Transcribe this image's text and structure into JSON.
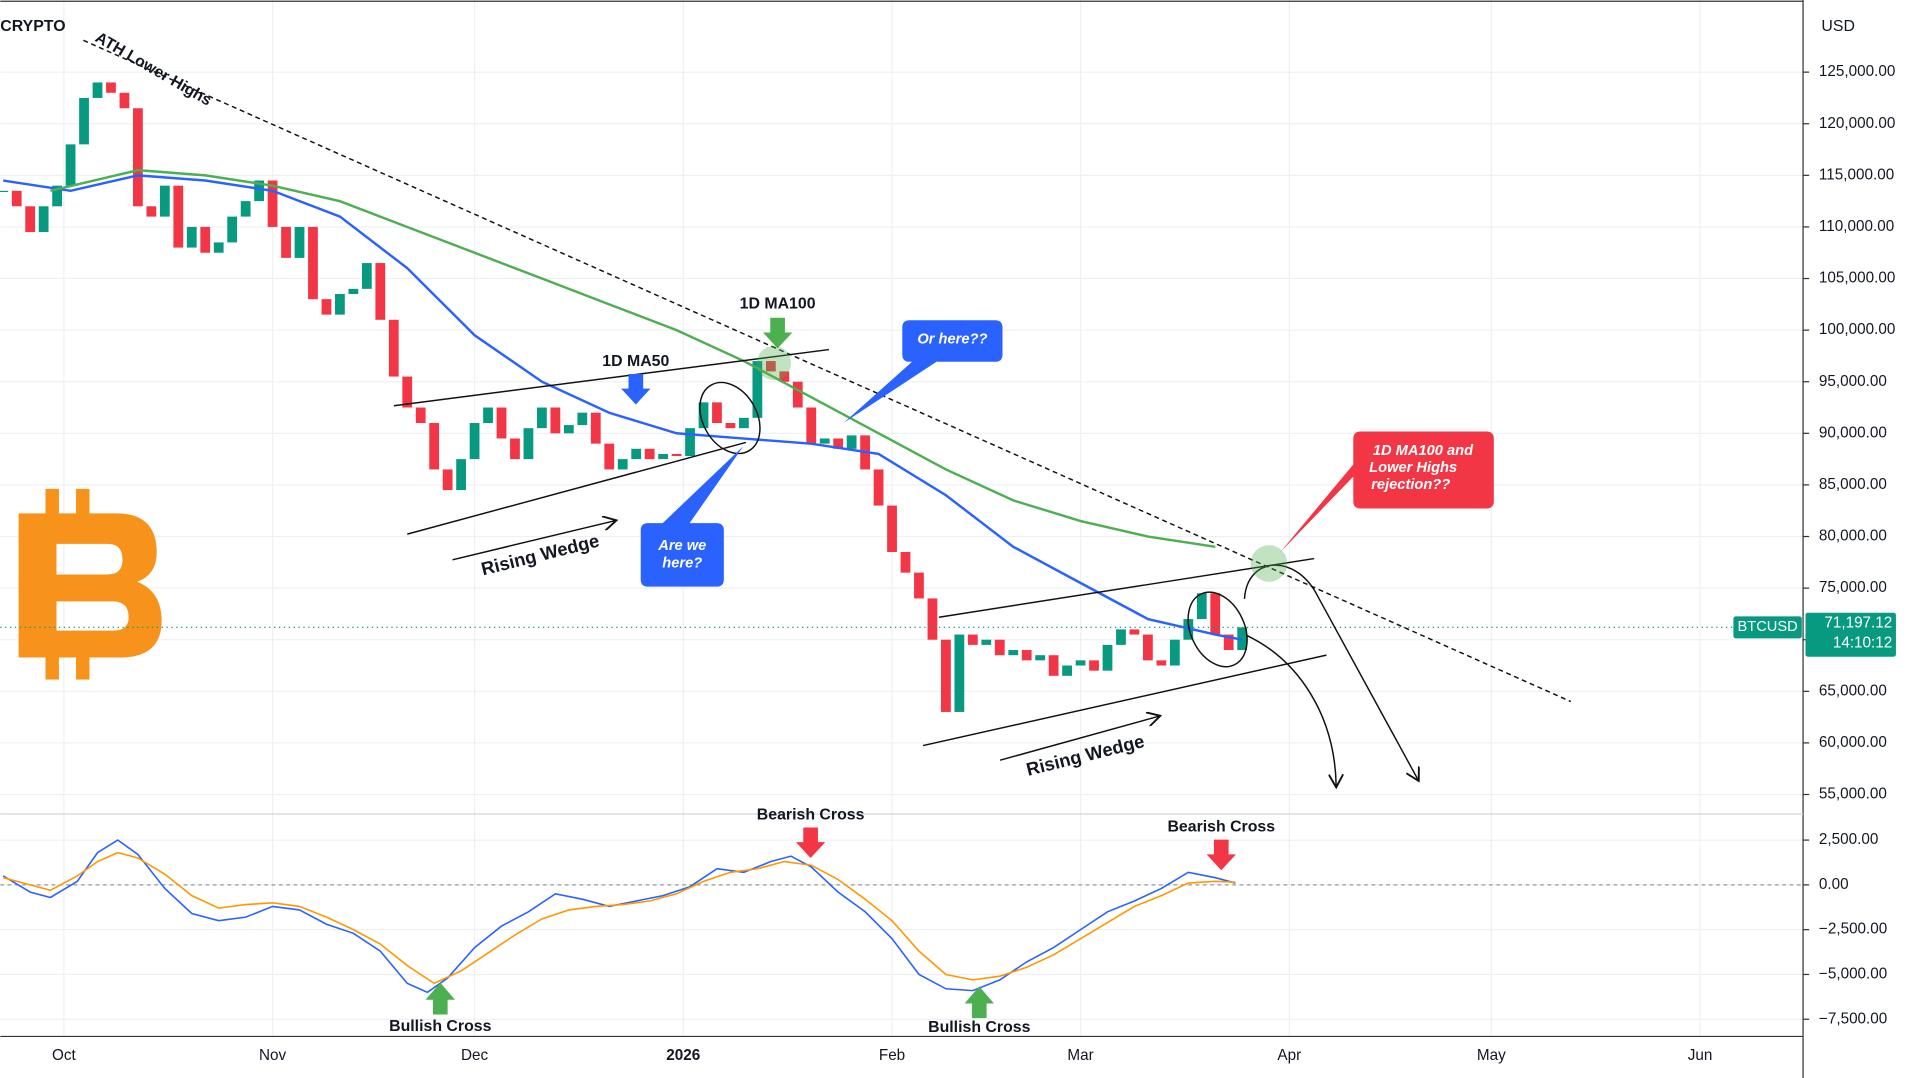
{
  "header": {
    "exchange": "CRYPTO",
    "currency": "USD"
  },
  "annotations": {
    "ath": "ATH Lower Highs",
    "ma100": "1D MA100",
    "ma50": "1D MA50",
    "or_here": "Or here??",
    "are_we_here": [
      "Are we",
      "here?"
    ],
    "rejection": [
      "1D MA100 and",
      "Lower Highs",
      "rejection??"
    ],
    "wedge1": "Rising Wedge",
    "wedge2": "Rising Wedge",
    "bearish1": "Bearish Cross",
    "bearish2": "Bearish Cross",
    "bullish1": "Bullish Cross",
    "bullish2": "Bullish Cross"
  },
  "chart_data": [
    {
      "type": "candlestick",
      "symbol": "BTCUSD",
      "last_price_label": "71,197.12",
      "countdown": "14:10:12",
      "up_color": "#089981",
      "down_color": "#f23645",
      "grid": true,
      "xlim": [
        -9.44,
        258.3
      ],
      "xticks": [
        {
          "value": 0,
          "label": "Oct"
        },
        {
          "value": 31,
          "label": "Nov"
        },
        {
          "value": 61,
          "label": "Dec"
        },
        {
          "value": 92,
          "label": "2026"
        },
        {
          "value": 123,
          "label": "Feb"
        },
        {
          "value": 151,
          "label": "Mar"
        },
        {
          "value": 182,
          "label": "Apr"
        },
        {
          "value": 212,
          "label": "May"
        },
        {
          "value": 243,
          "label": "Jun"
        }
      ],
      "ylim": [
        53230,
        131990
      ],
      "yticks": [
        {
          "value": 55000,
          "label": "55,000.00"
        },
        {
          "value": 60000,
          "label": "60,000.00"
        },
        {
          "value": 65000,
          "label": "65,000.00"
        },
        {
          "value": 70000,
          "label": "70,000.00"
        },
        {
          "value": 75000,
          "label": "75,000.00"
        },
        {
          "value": 80000,
          "label": "80,000.00"
        },
        {
          "value": 85000,
          "label": "85,000.00"
        },
        {
          "value": 90000,
          "label": "90,000.00"
        },
        {
          "value": 95000,
          "label": "95,000.00"
        },
        {
          "value": 100000,
          "label": "100,000.00"
        },
        {
          "value": 105000,
          "label": "105,000.00"
        },
        {
          "value": 110000,
          "label": "110,000.00"
        },
        {
          "value": 115000,
          "label": "115,000.00"
        },
        {
          "value": 120000,
          "label": "120,000.00"
        },
        {
          "value": 125000,
          "label": "125,000.00"
        }
      ],
      "x": [
        -9,
        -7,
        -5,
        -3,
        -1,
        1,
        3,
        5,
        7,
        9,
        11,
        13,
        15,
        17,
        19,
        21,
        23,
        25,
        27,
        29,
        31,
        33,
        35,
        37,
        39,
        41,
        43,
        45,
        47,
        49,
        51,
        53,
        55,
        57,
        59,
        61,
        63,
        65,
        67,
        69,
        71,
        73,
        75,
        77,
        79,
        81,
        83,
        85,
        87,
        89,
        91,
        93,
        95,
        97,
        99,
        101,
        103,
        105,
        107,
        109,
        111,
        113,
        115,
        117,
        119,
        121,
        123,
        125,
        127,
        129,
        131,
        133,
        135,
        137,
        139,
        141,
        143,
        145,
        147,
        149,
        151,
        153,
        155,
        157,
        159,
        161,
        163,
        165,
        167,
        169,
        171,
        173,
        175
      ],
      "close": [
        113500,
        112000,
        109500,
        112000,
        114000,
        118000,
        122500,
        124000,
        123000,
        121500,
        112000,
        111000,
        114000,
        108000,
        110000,
        107500,
        108500,
        111000,
        112500,
        114500,
        110000,
        107000,
        110000,
        103000,
        101500,
        103500,
        104000,
        106500,
        101000,
        95500,
        92500,
        91000,
        86500,
        84500,
        87500,
        91000,
        92500,
        89500,
        87500,
        90500,
        92500,
        90000,
        90800,
        92000,
        89000,
        86500,
        87500,
        88500,
        87500,
        88000,
        87800,
        90500,
        93000,
        91000,
        90500,
        91500,
        97000,
        96000,
        95000,
        92500,
        89000,
        89500,
        88500,
        89800,
        86500,
        83000,
        78500,
        76500,
        74000,
        70000,
        63000,
        70500,
        69500,
        70000,
        68500,
        69000,
        68000,
        68500,
        66500,
        67500,
        68000,
        67000,
        69500,
        71000,
        70500,
        68000,
        67500,
        70000,
        72000,
        74500,
        70500,
        69000,
        71197.12
      ],
      "series": [
        {
          "color": "#2962ff",
          "x": [
            -9,
            1,
            11,
            21,
            31,
            41,
            51,
            61,
            71,
            81,
            91,
            101,
            111,
            121,
            131,
            141,
            151,
            161,
            171,
            175
          ],
          "values": [
            114500,
            113500,
            115000,
            114500,
            113500,
            111000,
            106000,
            99500,
            95000,
            92000,
            90000,
            89500,
            89000,
            88000,
            84000,
            79000,
            75500,
            72000,
            70500,
            70000
          ]
        },
        {
          "color": "#4caf50",
          "x": [
            -2,
            11,
            21,
            31,
            41,
            51,
            61,
            71,
            81,
            91,
            101,
            111,
            121,
            131,
            141,
            151,
            161,
            171
          ],
          "values": [
            113500,
            115500,
            115000,
            114000,
            112500,
            110000,
            107500,
            105000,
            102500,
            100000,
            97000,
            93500,
            90000,
            86500,
            83500,
            81500,
            80000,
            79000
          ]
        }
      ]
    },
    {
      "type": "line",
      "ylim": [
        -8460,
        3820
      ],
      "yticks": [
        {
          "value": 2500,
          "label": "2,500.00"
        },
        {
          "value": 0,
          "label": "0.00"
        },
        {
          "value": -2500,
          "label": "−2,500.00"
        },
        {
          "value": -5000,
          "label": "−5,000.00"
        },
        {
          "value": -7500,
          "label": "−7,500.00"
        }
      ],
      "series": [
        {
          "color": "#2962ff",
          "x": [
            -9,
            -5,
            -2,
            2,
            5,
            8,
            11,
            15,
            19,
            23,
            27,
            31,
            35,
            39,
            43,
            47,
            51,
            54,
            57,
            61,
            65,
            69,
            73,
            77,
            81,
            85,
            89,
            93,
            97,
            101,
            105,
            108,
            111,
            115,
            119,
            123,
            127,
            131,
            135,
            139,
            143,
            147,
            151,
            155,
            159,
            163,
            167,
            171,
            174
          ],
          "values": [
            500,
            -400,
            -700,
            200,
            1800,
            2500,
            1700,
            -200,
            -1600,
            -2000,
            -1800,
            -1200,
            -1400,
            -2200,
            -2700,
            -3700,
            -5500,
            -6000,
            -5200,
            -3500,
            -2300,
            -1500,
            -500,
            -800,
            -1200,
            -900,
            -600,
            -100,
            900,
            700,
            1300,
            1600,
            1000,
            -400,
            -1500,
            -3000,
            -5000,
            -5800,
            -5900,
            -5300,
            -4300,
            -3500,
            -2500,
            -1500,
            -900,
            -200,
            700,
            400,
            100
          ]
        },
        {
          "color": "#ff9800",
          "x": [
            -9,
            -5,
            -2,
            2,
            5,
            8,
            11,
            15,
            19,
            23,
            27,
            31,
            35,
            39,
            43,
            47,
            51,
            55,
            59,
            63,
            67,
            71,
            75,
            79,
            83,
            87,
            91,
            95,
            99,
            103,
            107,
            111,
            115,
            119,
            123,
            127,
            131,
            135,
            139,
            143,
            147,
            151,
            155,
            159,
            163,
            167,
            171,
            174
          ],
          "values": [
            400,
            0,
            -300,
            500,
            1300,
            1800,
            1500,
            600,
            -600,
            -1300,
            -1100,
            -1000,
            -1200,
            -1800,
            -2500,
            -3300,
            -4500,
            -5500,
            -4800,
            -3800,
            -2800,
            -1900,
            -1400,
            -1200,
            -1100,
            -900,
            -500,
            200,
            700,
            900,
            1300,
            1100,
            300,
            -800,
            -2000,
            -3700,
            -5000,
            -5300,
            -5100,
            -4600,
            -3900,
            -3000,
            -2100,
            -1200,
            -600,
            100,
            200,
            150
          ]
        }
      ]
    }
  ]
}
